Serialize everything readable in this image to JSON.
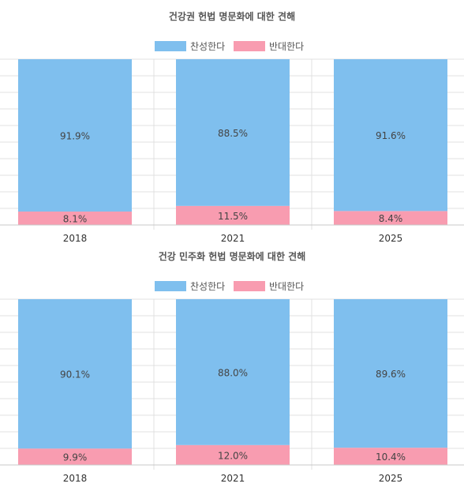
{
  "chart_data": [
    {
      "type": "bar",
      "stacked": true,
      "percent_stacked": true,
      "title": "건강권 헌법 명문화에 대한 견해",
      "categories": [
        "2018",
        "2021",
        "2025"
      ],
      "series": [
        {
          "name": "찬성한다",
          "values": [
            91.9,
            88.5,
            91.6
          ],
          "color": "#7fbfee"
        },
        {
          "name": "반대한다",
          "values": [
            8.1,
            11.5,
            8.4
          ],
          "color": "#f89cb0"
        }
      ],
      "data_labels": {
        "찬성한다": [
          "91.9%",
          "88.5%",
          "91.6%"
        ],
        "반대한다": [
          "8.1%",
          "11.5%",
          "8.4%"
        ]
      },
      "ylim": [
        0,
        100
      ],
      "legend": "top-center",
      "grid": true
    },
    {
      "type": "bar",
      "stacked": true,
      "percent_stacked": true,
      "title": "건강 민주화 헌법 명문화에 대한 견해",
      "categories": [
        "2018",
        "2021",
        "2025"
      ],
      "series": [
        {
          "name": "찬성한다",
          "values": [
            90.1,
            88.0,
            89.6
          ],
          "color": "#7fbfee"
        },
        {
          "name": "반대한다",
          "values": [
            9.9,
            12.0,
            10.4
          ],
          "color": "#f89cb0"
        }
      ],
      "data_labels": {
        "찬성한다": [
          "90.1%",
          "88.0%",
          "89.6%"
        ],
        "반대한다": [
          "9.9%",
          "12.0%",
          "10.4%"
        ]
      },
      "ylim": [
        0,
        100
      ],
      "legend": "top-center",
      "grid": true
    }
  ]
}
